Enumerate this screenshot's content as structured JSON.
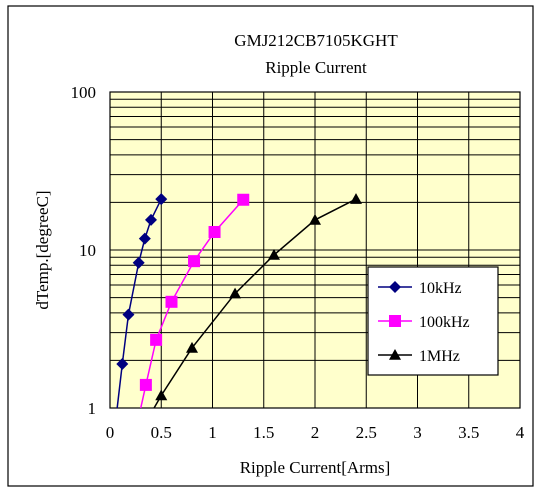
{
  "chart_data": {
    "type": "line",
    "title": "GMJ212CB7105KGHT",
    "subtitle": "Ripple Current",
    "xlabel": "Ripple Current[Arms]",
    "ylabel": "dTemp.[degreeC]",
    "xlim": [
      0,
      4
    ],
    "ylim": [
      1,
      100
    ],
    "y_scale": "log",
    "x_ticks": [
      "0",
      "0.5",
      "1",
      "1.5",
      "2",
      "2.5",
      "3",
      "3.5",
      "4"
    ],
    "y_ticks": [
      "1",
      "10",
      "100"
    ],
    "grid": true,
    "legend_position": "bottom-right",
    "colors": {
      "plot_background": "#ffffcc",
      "frame": "#000000"
    },
    "series": [
      {
        "name": "10kHz",
        "color": "#000080",
        "marker": "diamond",
        "x": [
          0.07,
          0.12,
          0.18,
          0.28,
          0.34,
          0.4,
          0.5
        ],
        "y": [
          1.0,
          1.9,
          3.9,
          8.3,
          11.8,
          15.5,
          21.0
        ]
      },
      {
        "name": "100kHz",
        "color": "#ff00ff",
        "marker": "square",
        "x": [
          0.3,
          0.35,
          0.45,
          0.6,
          0.82,
          1.02,
          1.3
        ],
        "y": [
          1.0,
          1.4,
          2.7,
          4.7,
          8.5,
          13.0,
          20.8
        ]
      },
      {
        "name": "1MHz",
        "color": "#000000",
        "marker": "triangle",
        "x": [
          0.43,
          0.5,
          0.8,
          1.22,
          1.6,
          2.0,
          2.4
        ],
        "y": [
          1.0,
          1.2,
          2.4,
          5.3,
          9.3,
          15.5,
          21.0
        ]
      }
    ]
  }
}
